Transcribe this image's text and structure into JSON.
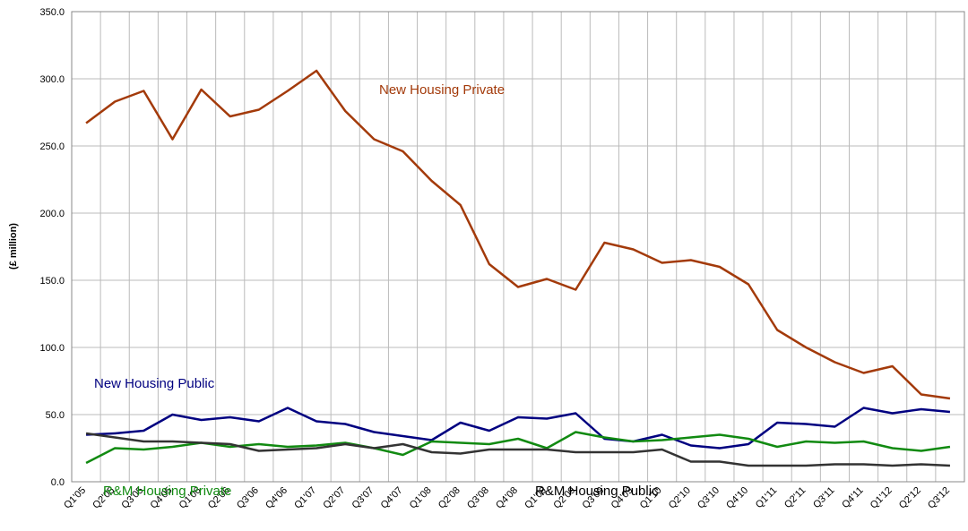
{
  "chart_data": {
    "type": "line",
    "y_label": "(£ million)",
    "categories": [
      "Q1'05",
      "Q2'05",
      "Q3'05",
      "Q4'05",
      "Q1'06",
      "Q2'06",
      "Q3'06",
      "Q4'06",
      "Q1'07",
      "Q2'07",
      "Q3'07",
      "Q4'07",
      "Q1'08",
      "Q2'08",
      "Q3'08",
      "Q4'08",
      "Q1'09",
      "Q2'09",
      "Q3'09",
      "Q4'09",
      "Q1'10",
      "Q2'10",
      "Q3'10",
      "Q4'10",
      "Q1'11",
      "Q2'11",
      "Q3'11",
      "Q4'11",
      "Q1'12",
      "Q2'12",
      "Q3'12"
    ],
    "series": [
      {
        "name": "New Housing Private",
        "color": "#a33a0a",
        "values": [
          267,
          283,
          291,
          255,
          292,
          272,
          277,
          291,
          306,
          276,
          255,
          246,
          224,
          206,
          162,
          145,
          151,
          143,
          178,
          173,
          163,
          165,
          160,
          147,
          113,
          100,
          89,
          81,
          86,
          65,
          62
        ]
      },
      {
        "name": "New Housing Public",
        "color": "#000080",
        "values": [
          35,
          36,
          38,
          50,
          46,
          48,
          45,
          55,
          45,
          43,
          37,
          34,
          31,
          44,
          38,
          48,
          47,
          51,
          32,
          30,
          35,
          27,
          25,
          28,
          44,
          43,
          41,
          55,
          51,
          54,
          52
        ]
      },
      {
        "name": "R&M Housing Private",
        "color": "#118a11",
        "values": [
          14,
          25,
          24,
          26,
          29,
          26,
          28,
          26,
          27,
          29,
          25,
          20,
          30,
          29,
          28,
          32,
          25,
          37,
          33,
          30,
          31,
          33,
          35,
          32,
          26,
          30,
          29,
          30,
          25,
          23,
          26
        ]
      },
      {
        "name": "R&M Housing Public",
        "color": "#333333",
        "values": [
          36,
          33,
          30,
          30,
          29,
          28,
          23,
          24,
          25,
          28,
          25,
          28,
          22,
          21,
          24,
          24,
          24,
          22,
          22,
          22,
          24,
          15,
          15,
          12,
          12,
          12,
          13,
          13,
          12,
          13,
          12
        ]
      }
    ],
    "ylim": [
      0,
      350
    ],
    "yticks": [
      {
        "value": 0,
        "label": "0.0"
      },
      {
        "value": 50,
        "label": "50.0"
      },
      {
        "value": 100,
        "label": "100.0"
      },
      {
        "value": 150,
        "label": "150.0"
      },
      {
        "value": 200,
        "label": "200.0"
      },
      {
        "value": 250,
        "label": "250.0"
      },
      {
        "value": 300,
        "label": "300.0"
      },
      {
        "value": 350,
        "label": "350.0"
      }
    ],
    "grid": true
  }
}
